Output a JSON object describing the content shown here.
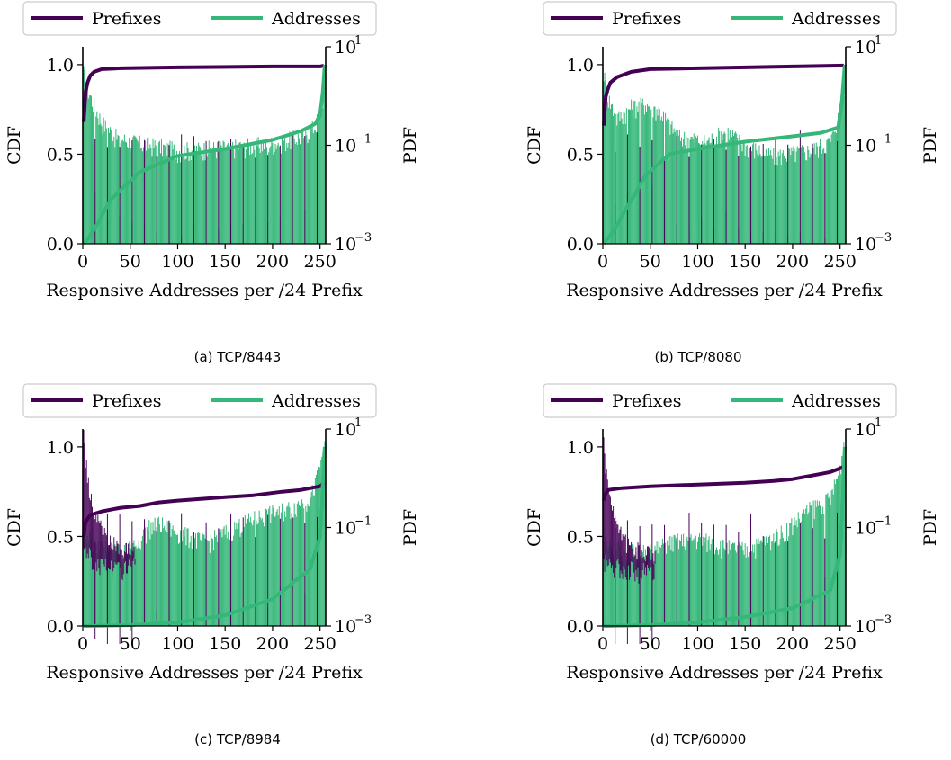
{
  "colors": {
    "prefixes": "#440154",
    "addresses": "#35b779"
  },
  "panels": [
    {
      "caption": "(a) TCP/8443",
      "chart_data": {
        "type": "bar",
        "title": "",
        "xlabel": "Responsive Addresses per /24 Prefix",
        "ylabel_left": "CDF",
        "ylabel_right": "PDF",
        "xlim": [
          0,
          256
        ],
        "xticks": [
          "0",
          "50",
          "100",
          "150",
          "200",
          "250"
        ],
        "ylim_left": [
          0,
          1.1
        ],
        "yticks_left": [
          "0.0",
          "0.5",
          "1.0"
        ],
        "ylim_right_log": [
          0.001,
          10
        ],
        "yticks_right": [
          "10",
          "10",
          "10"
        ],
        "yticks_right_exp": [
          "1",
          "−1",
          "−3"
        ],
        "legend": [
          "Prefixes",
          "Addresses"
        ],
        "legend_loc": "top-center",
        "series": [
          {
            "name": "Prefixes",
            "kind": "cdf-line",
            "x": [
              1,
              3,
              5,
              8,
              12,
              20,
              40,
              100,
              200,
              250,
              254
            ],
            "y": [
              0.68,
              0.85,
              0.9,
              0.94,
              0.96,
              0.975,
              0.98,
              0.985,
              0.99,
              0.99,
              0.995
            ]
          },
          {
            "name": "Addresses",
            "kind": "cdf-line",
            "x": [
              1,
              5,
              12,
              30,
              60,
              100,
              150,
              200,
              230,
              245,
              250,
              253,
              255
            ],
            "y": [
              0.0,
              0.02,
              0.08,
              0.25,
              0.4,
              0.49,
              0.53,
              0.58,
              0.63,
              0.67,
              0.72,
              0.85,
              1.0
            ]
          },
          {
            "name": "Addresses",
            "kind": "pdf-profile",
            "x": [
              1,
              3,
              5,
              10,
              20,
              35,
              50,
              100,
              150,
              200,
              230,
              245,
              252,
              256
            ],
            "y": [
              3.0,
              2.0,
              1.5,
              0.8,
              0.3,
              0.15,
              0.12,
              0.08,
              0.09,
              0.11,
              0.15,
              0.25,
              0.6,
              3.0
            ]
          }
        ]
      }
    },
    {
      "caption": "(b) TCP/8080",
      "chart_data": {
        "type": "bar",
        "title": "",
        "xlabel": "Responsive Addresses per /24 Prefix",
        "ylabel_left": "CDF",
        "ylabel_right": "PDF",
        "xlim": [
          0,
          256
        ],
        "xticks": [
          "0",
          "50",
          "100",
          "150",
          "200",
          "250"
        ],
        "ylim_left": [
          0,
          1.1
        ],
        "yticks_left": [
          "0.0",
          "0.5",
          "1.0"
        ],
        "ylim_right_log": [
          0.001,
          10
        ],
        "yticks_right": [
          "10",
          "10",
          "10"
        ],
        "yticks_right_exp": [
          "1",
          "−1",
          "−3"
        ],
        "legend": [
          "Prefixes",
          "Addresses"
        ],
        "legend_loc": "top-center",
        "series": [
          {
            "name": "Prefixes",
            "kind": "cdf-line",
            "x": [
              1,
              3,
              5,
              8,
              15,
              30,
              50,
              100,
              200,
              254
            ],
            "y": [
              0.66,
              0.82,
              0.86,
              0.9,
              0.93,
              0.96,
              0.975,
              0.98,
              0.99,
              0.995
            ]
          },
          {
            "name": "Addresses",
            "kind": "cdf-line",
            "x": [
              1,
              10,
              25,
              45,
              70,
              100,
              150,
              200,
              230,
              248,
              252,
              255
            ],
            "y": [
              0.0,
              0.06,
              0.2,
              0.38,
              0.5,
              0.53,
              0.57,
              0.6,
              0.62,
              0.65,
              0.8,
              1.0
            ]
          },
          {
            "name": "Addresses",
            "kind": "pdf-profile",
            "x": [
              1,
              5,
              15,
              30,
              45,
              60,
              80,
              110,
              130,
              150,
              180,
              220,
              240,
              250,
              256
            ],
            "y": [
              3.0,
              1.0,
              0.35,
              0.6,
              0.7,
              0.5,
              0.15,
              0.12,
              0.2,
              0.1,
              0.06,
              0.08,
              0.12,
              0.5,
              3.0
            ]
          }
        ]
      }
    },
    {
      "caption": "(c) TCP/8984",
      "chart_data": {
        "type": "bar",
        "title": "",
        "xlabel": "Responsive Addresses per /24 Prefix",
        "ylabel_left": "CDF",
        "ylabel_right": "PDF",
        "xlim": [
          0,
          256
        ],
        "xticks": [
          "0",
          "50",
          "100",
          "150",
          "200",
          "250"
        ],
        "ylim_left": [
          0,
          1.1
        ],
        "yticks_left": [
          "0.0",
          "0.5",
          "1.0"
        ],
        "ylim_right_log": [
          0.001,
          10
        ],
        "yticks_right": [
          "10",
          "10",
          "10"
        ],
        "yticks_right_exp": [
          "1",
          "−1",
          "−3"
        ],
        "legend": [
          "Prefixes",
          "Addresses"
        ],
        "legend_loc": "top-center",
        "series": [
          {
            "name": "Prefixes",
            "kind": "cdf-line",
            "x": [
              1,
              3,
              8,
              20,
              40,
              60,
              80,
              100,
              150,
              180,
              210,
              230,
              250,
              254
            ],
            "y": [
              0.5,
              0.58,
              0.62,
              0.64,
              0.66,
              0.67,
              0.69,
              0.7,
              0.72,
              0.73,
              0.75,
              0.76,
              0.78,
              0.8
            ]
          },
          {
            "name": "Addresses",
            "kind": "cdf-line",
            "x": [
              1,
              50,
              100,
              150,
              200,
              240,
              250,
              255
            ],
            "y": [
              0.0,
              0.005,
              0.02,
              0.06,
              0.15,
              0.32,
              0.5,
              1.0
            ]
          },
          {
            "name": "Prefixes",
            "kind": "pdf-profile",
            "x": [
              1,
              3,
              6,
              10,
              15,
              20,
              25,
              30,
              40,
              50,
              55
            ],
            "y": [
              8.0,
              2.5,
              0.8,
              0.3,
              0.15,
              0.1,
              0.06,
              0.05,
              0.04,
              0.035,
              0.035
            ]
          },
          {
            "name": "Addresses",
            "kind": "pdf-profile",
            "x": [
              1,
              10,
              25,
              40,
              55,
              70,
              80,
              100,
              130,
              160,
              180,
              200,
              220,
              240,
              250,
              256
            ],
            "y": [
              0.1,
              0.05,
              0.04,
              0.035,
              0.04,
              0.1,
              0.12,
              0.08,
              0.05,
              0.1,
              0.15,
              0.2,
              0.25,
              0.4,
              1.5,
              8.0
            ]
          }
        ]
      }
    },
    {
      "caption": "(d) TCP/60000",
      "chart_data": {
        "type": "bar",
        "title": "",
        "xlabel": "Responsive Addresses per /24 Prefix",
        "ylabel_left": "CDF",
        "ylabel_right": "PDF",
        "xlim": [
          0,
          256
        ],
        "xticks": [
          "0",
          "50",
          "100",
          "150",
          "200",
          "250"
        ],
        "ylim_left": [
          0,
          1.1
        ],
        "yticks_left": [
          "0.0",
          "0.5",
          "1.0"
        ],
        "ylim_right_log": [
          0.001,
          10
        ],
        "yticks_right": [
          "10",
          "10",
          "10"
        ],
        "yticks_right_exp": [
          "1",
          "−1",
          "−3"
        ],
        "legend": [
          "Prefixes",
          "Addresses"
        ],
        "legend_loc": "top-center",
        "series": [
          {
            "name": "Prefixes",
            "kind": "cdf-line",
            "x": [
              1,
              3,
              6,
              20,
              50,
              100,
              150,
              180,
              200,
              220,
              240,
              250,
              254
            ],
            "y": [
              0.7,
              0.74,
              0.76,
              0.77,
              0.78,
              0.79,
              0.8,
              0.81,
              0.82,
              0.84,
              0.86,
              0.88,
              0.89
            ]
          },
          {
            "name": "Addresses",
            "kind": "cdf-line",
            "x": [
              1,
              50,
              100,
              150,
              200,
              240,
              250,
              255
            ],
            "y": [
              0.0,
              0.005,
              0.02,
              0.05,
              0.1,
              0.2,
              0.4,
              1.0
            ]
          },
          {
            "name": "Prefixes",
            "kind": "pdf-profile",
            "x": [
              1,
              3,
              6,
              10,
              15,
              20,
              25,
              30,
              40,
              50,
              55
            ],
            "y": [
              6.0,
              2.0,
              0.6,
              0.25,
              0.1,
              0.07,
              0.05,
              0.04,
              0.035,
              0.03,
              0.03
            ]
          },
          {
            "name": "Addresses",
            "kind": "pdf-profile",
            "x": [
              1,
              10,
              25,
              40,
              55,
              70,
              100,
              130,
              150,
              180,
              200,
              220,
              240,
              250,
              256
            ],
            "y": [
              0.05,
              0.04,
              0.035,
              0.03,
              0.035,
              0.05,
              0.06,
              0.04,
              0.035,
              0.06,
              0.12,
              0.25,
              0.4,
              1.5,
              9.0
            ]
          }
        ]
      }
    }
  ]
}
